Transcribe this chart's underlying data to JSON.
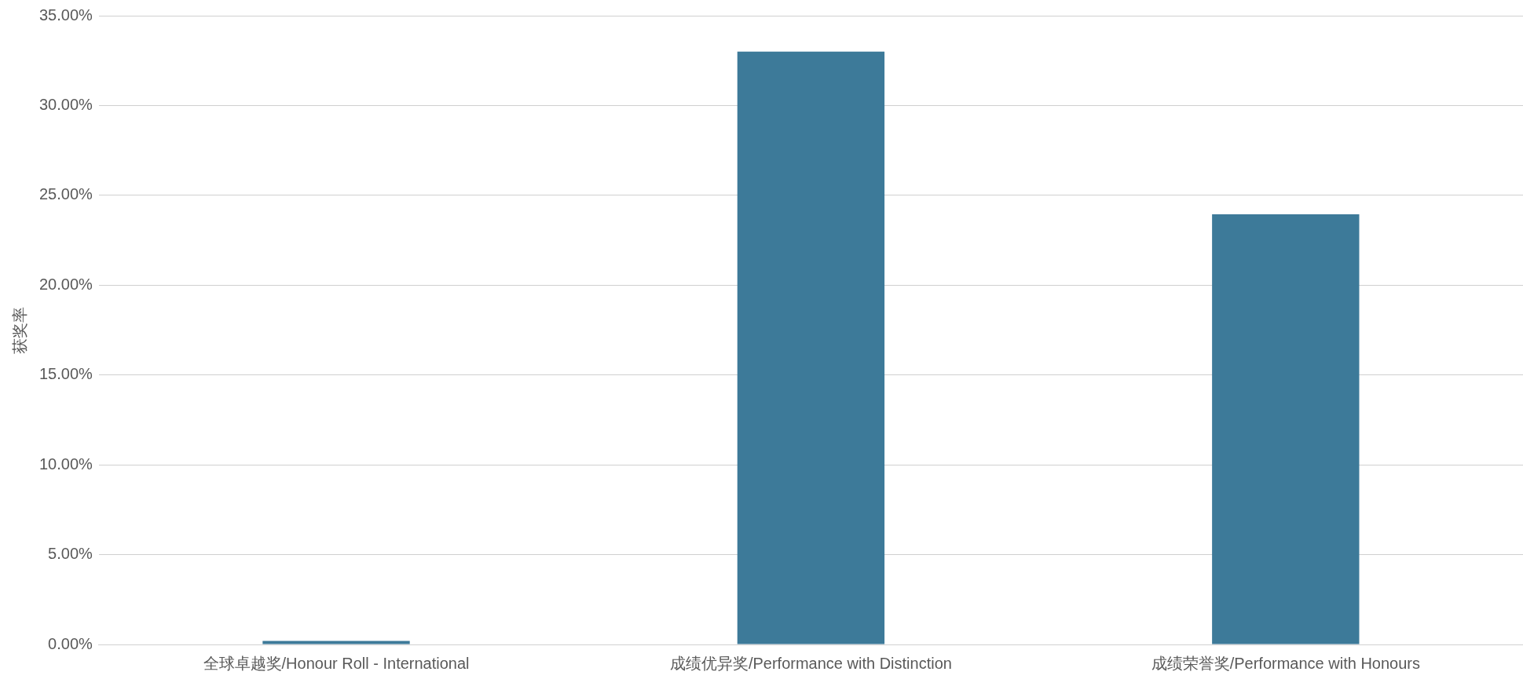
{
  "chart_data": {
    "type": "bar",
    "ylabel": "获奖率",
    "categories": [
      "全球卓越奖/Honour Roll - International",
      "成绩优异奖/Performance with Distinction",
      "成绩荣誉奖/Performance with Honours"
    ],
    "values": [
      0.2,
      33,
      23.95
    ],
    "color": "#3d7a99",
    "ylim": [
      0,
      35
    ],
    "yticks": [
      {
        "value": 0,
        "label": "0.00%"
      },
      {
        "value": 5,
        "label": "5.00%"
      },
      {
        "value": 10,
        "label": "10.00%"
      },
      {
        "value": 15,
        "label": "15.00%"
      },
      {
        "value": 20,
        "label": "20.00%"
      },
      {
        "value": 25,
        "label": "25.00%"
      },
      {
        "value": 30,
        "label": "30.00%"
      },
      {
        "value": 35,
        "label": "35.00%"
      }
    ],
    "grid": "y",
    "legend": false
  }
}
